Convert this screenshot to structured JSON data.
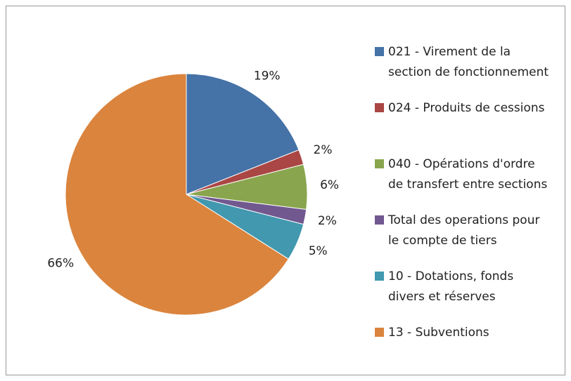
{
  "chart_data": {
    "type": "pie",
    "categories": [
      "021 - Virement de la section de fonctionnement",
      "024 - Produits de cessions",
      "040 - Opérations d'ordre de transfert entre sections",
      "Total des operations pour le compte de tiers",
      "10 - Dotations, fonds divers et réserves",
      "13 - Subventions"
    ],
    "values": [
      19,
      2,
      6,
      2,
      5,
      66
    ],
    "value_labels": [
      "19%",
      "2%",
      "6%",
      "2%",
      "5%",
      "66%"
    ],
    "colors": [
      "#4572A7",
      "#AA4643",
      "#89A54E",
      "#71588F",
      "#4198AF",
      "#DB843D"
    ],
    "legend": "right"
  }
}
